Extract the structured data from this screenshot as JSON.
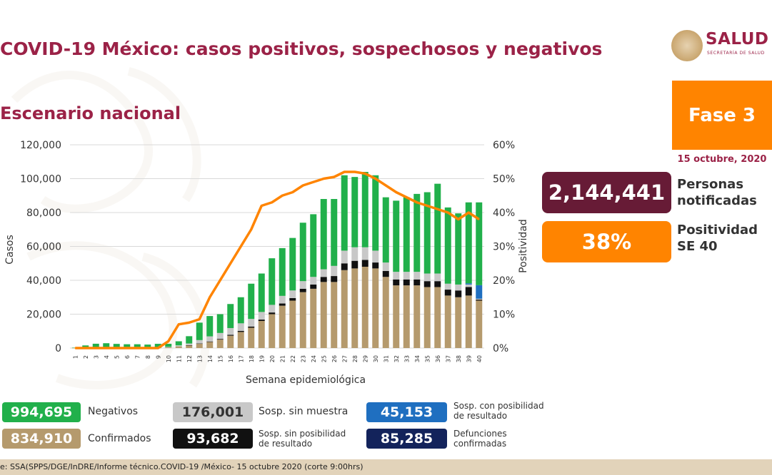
{
  "header": {
    "title": "COVID-19 México: casos positivos, sospechosos y negativos",
    "subtitle": "Escenario nacional"
  },
  "logo": {
    "name": "SALUD",
    "sub": "SECRETARÍA DE SALUD"
  },
  "phase": {
    "label": "Fase 3",
    "date": "15 octubre, 2020"
  },
  "stats": {
    "notified": {
      "value": "2,144,441",
      "label_line1": "Personas",
      "label_line2": "notificadas"
    },
    "positivity": {
      "value": "38%",
      "label_line1": "Positividad",
      "label_line2": "SE 40"
    }
  },
  "legend": {
    "negativos": {
      "value": "994,695",
      "label": "Negativos"
    },
    "confirmados": {
      "value": "834,910",
      "label": "Confirmados"
    },
    "sin_muestra": {
      "value": "176,001",
      "label": "Sosp. sin muestra"
    },
    "sin_posibilidad": {
      "value": "93,682",
      "label_line1": "Sosp. sin posibilidad",
      "label_line2": "de resultado"
    },
    "con_posibilidad": {
      "value": "45,153",
      "label_line1": "Sosp. con posibilidad",
      "label_line2": "de resultado"
    },
    "defunciones": {
      "value": "85,285",
      "label_line1": "Defunciones",
      "label_line2": "confirmadas"
    }
  },
  "footer": {
    "source": "e: SSA(SPPS/DGE/InDRE/Informe técnico.COVID-19 /México- 15 octubre 2020 (corte 9:00hrs)"
  },
  "colors": {
    "maroon": "#9b2247",
    "dark_maroon": "#671b36",
    "orange": "#ff8400",
    "green": "#21b04b",
    "tan": "#b59a6d",
    "gray": "#c8c8c8",
    "black": "#111111",
    "blue": "#1f6fc0",
    "navy": "#13235b"
  },
  "chart_data": {
    "type": "bar",
    "stacked": true,
    "xlabel": "Semana epidemiológica",
    "ylabel": "Casos",
    "y2label": "Positividad",
    "ylim": [
      0,
      120000
    ],
    "y2lim": [
      0,
      60
    ],
    "yticks": [
      "0",
      "20,000",
      "40,000",
      "60,000",
      "80,000",
      "100,000",
      "120,000"
    ],
    "y2ticks": [
      "0%",
      "10%",
      "20%",
      "30%",
      "40%",
      "50%",
      "60%"
    ],
    "grid": true,
    "categories": [
      "1",
      "2",
      "3",
      "4",
      "5",
      "6",
      "7",
      "8",
      "9",
      "10",
      "11",
      "12",
      "13",
      "14",
      "15",
      "16",
      "17",
      "18",
      "19",
      "20",
      "21",
      "22",
      "23",
      "24",
      "25",
      "26",
      "27",
      "28",
      "29",
      "30",
      "31",
      "32",
      "33",
      "34",
      "35",
      "36",
      "37",
      "38",
      "39",
      "40"
    ],
    "series": [
      {
        "name": "Confirmados",
        "color": "#b59a6d",
        "values": [
          50,
          50,
          50,
          50,
          50,
          50,
          50,
          50,
          100,
          400,
          1000,
          1600,
          2500,
          3600,
          5000,
          7300,
          9500,
          12000,
          16000,
          20000,
          25000,
          28000,
          33000,
          35000,
          39000,
          39000,
          46000,
          47000,
          48000,
          47000,
          42000,
          37000,
          37000,
          37000,
          36000,
          36000,
          31000,
          30000,
          31000,
          28000
        ]
      },
      {
        "name": "Sosp. sin posibilidad de resultado",
        "color": "#111111",
        "values": [
          0,
          0,
          0,
          0,
          0,
          0,
          0,
          0,
          0,
          0,
          0,
          100,
          200,
          300,
          400,
          500,
          600,
          700,
          800,
          1000,
          1300,
          1500,
          2000,
          2500,
          3000,
          3500,
          4000,
          4500,
          4000,
          3500,
          3500,
          3500,
          3500,
          3500,
          3500,
          3500,
          3500,
          4000,
          5000,
          600
        ]
      },
      {
        "name": "Sosp. sin muestra",
        "color": "#c8c8c8",
        "values": [
          0,
          0,
          0,
          0,
          0,
          0,
          0,
          0,
          0,
          300,
          600,
          1000,
          2000,
          3000,
          3500,
          4000,
          4500,
          4500,
          4500,
          4500,
          4500,
          4500,
          4500,
          4500,
          4500,
          6000,
          7500,
          8000,
          7500,
          7000,
          5000,
          4500,
          4500,
          4500,
          4500,
          4500,
          3500,
          3500,
          1500,
          500
        ]
      },
      {
        "name": "Sosp. con posibilidad de resultado",
        "color": "#1f6fc0",
        "values": [
          0,
          0,
          0,
          0,
          0,
          0,
          0,
          0,
          0,
          0,
          0,
          0,
          0,
          0,
          0,
          0,
          0,
          0,
          0,
          0,
          0,
          0,
          0,
          0,
          0,
          0,
          0,
          0,
          0,
          0,
          0,
          0,
          0,
          0,
          0,
          0,
          0,
          0,
          700,
          8000
        ]
      },
      {
        "name": "Negativos",
        "color": "#21b04b",
        "values": [
          200,
          1500,
          2500,
          2800,
          2400,
          2200,
          2200,
          2000,
          2400,
          1800,
          2400,
          4300,
          10300,
          12000,
          11100,
          14200,
          15400,
          20800,
          22700,
          27500,
          28200,
          31000,
          34500,
          37000,
          41500,
          39500,
          44500,
          41500,
          44500,
          44500,
          38500,
          42000,
          44000,
          46000,
          48000,
          53000,
          45000,
          42000,
          47800,
          48900
        ]
      }
    ],
    "line_series": {
      "name": "Positividad",
      "color": "#ff8400",
      "axis": "right",
      "values": [
        0,
        0,
        0,
        0,
        0,
        0,
        0,
        0,
        0,
        2,
        7,
        7.5,
        8.5,
        15,
        20,
        25,
        30,
        35,
        42,
        43,
        45,
        46,
        48,
        49,
        50,
        50.5,
        52,
        52,
        51.5,
        50,
        48,
        46,
        44.5,
        43,
        42,
        41,
        40,
        38,
        40,
        38
      ]
    }
  }
}
